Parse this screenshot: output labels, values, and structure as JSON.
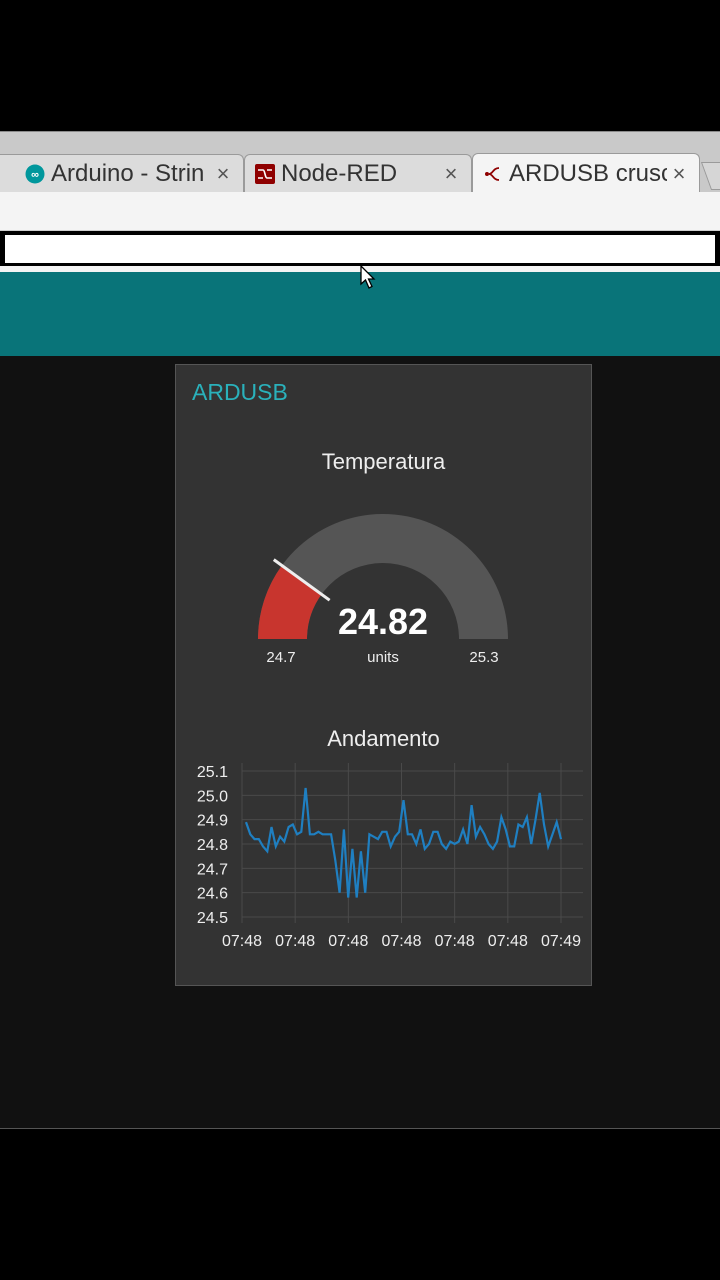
{
  "browser": {
    "tabs": [
      {
        "title": "Arduino - Strin",
        "icon": "arduino-icon",
        "close": "×"
      },
      {
        "title": "Node-RED",
        "icon": "node-red-icon",
        "close": "×"
      },
      {
        "title": "ARDUSB crusc",
        "icon": "node-red-flow-icon",
        "close": "×",
        "active": true
      }
    ]
  },
  "colors": {
    "header": "#097479",
    "accent": "#2ab1bb",
    "gauge_fill": "#c8352e",
    "gauge_track": "#555555",
    "line": "#1f7fc1"
  },
  "card": {
    "title": "ARDUSB",
    "gauge": {
      "title": "Temperatura",
      "value": "24.82",
      "units": "units",
      "min": "24.7",
      "max": "25.3",
      "min_value": 24.7,
      "max_value": 25.3,
      "current_value": 24.82
    },
    "chart_title": "Andamento"
  },
  "chart_data": {
    "type": "line",
    "title": "Andamento",
    "ylim": [
      24.5,
      25.1
    ],
    "yticks": [
      "25.1",
      "25.0",
      "24.9",
      "24.8",
      "24.7",
      "24.6",
      "24.5"
    ],
    "xticks": [
      "07:48",
      "07:48",
      "07:48",
      "07:48",
      "07:48",
      "07:48",
      "07:49"
    ],
    "grid": true,
    "series": [
      {
        "values": [
          24.89,
          24.84,
          24.82,
          24.82,
          24.79,
          24.77,
          24.87,
          24.79,
          24.83,
          24.81,
          24.87,
          24.88,
          24.84,
          24.85,
          25.03,
          24.84,
          24.84,
          24.85,
          24.84,
          24.84,
          24.84,
          24.73,
          24.6,
          24.86,
          24.58,
          24.78,
          24.58,
          24.77,
          24.6,
          24.84,
          24.83,
          24.82,
          24.85,
          24.85,
          24.79,
          24.83,
          24.85,
          24.98,
          24.84,
          24.84,
          24.8,
          24.86,
          24.78,
          24.8,
          24.85,
          24.85,
          24.8,
          24.78,
          24.81,
          24.8,
          24.81,
          24.86,
          24.8,
          24.96,
          24.83,
          24.87,
          24.84,
          24.8,
          24.78,
          24.81,
          24.91,
          24.86,
          24.79,
          24.79,
          24.88,
          24.87,
          24.91,
          24.8,
          24.9,
          25.01,
          24.88,
          24.79,
          24.84,
          24.89,
          24.82
        ]
      }
    ]
  }
}
